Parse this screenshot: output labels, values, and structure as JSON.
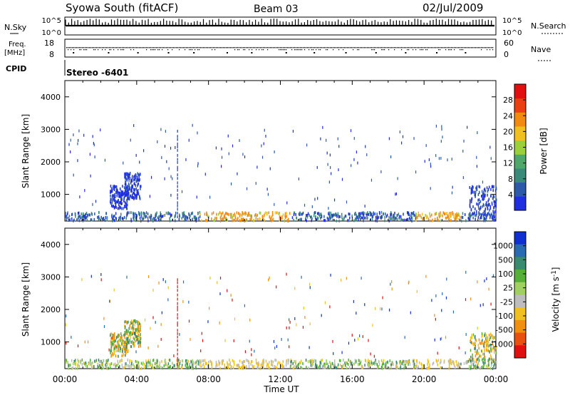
{
  "header": {
    "station": "Syowa South (fitACF)",
    "beam": "Beam 03",
    "date": "02/Jul/2009"
  },
  "top_panels": {
    "nsky_label": "N.Sky",
    "nsky_ticks": [
      "10^5",
      "10^0"
    ],
    "nsearch_label": "N.Search",
    "nsearch_ticks": [
      "10^5",
      "10^0"
    ],
    "freq_label_1": "Freq.",
    "freq_label_2": "[MHz]",
    "freq_ticks": [
      "18",
      "8"
    ],
    "nave_label": "Nave",
    "nave_ticks": [
      "60",
      "0"
    ],
    "cpid_label": "CPID",
    "cpid_value": "Stereo -6401"
  },
  "colors": {
    "power_scale": [
      "#1f2fe0",
      "#2d5aa8",
      "#3a8a7a",
      "#4fa86a",
      "#9bd03c",
      "#f0c020",
      "#f08a10",
      "#e84010",
      "#e01010"
    ],
    "velocity_scale": [
      "#1030d0",
      "#2a6ab0",
      "#3a8a70",
      "#56b038",
      "#a0d060",
      "#bdbdbd",
      "#f0c020",
      "#f09010",
      "#e85010",
      "#e01010"
    ]
  },
  "chart_data": [
    {
      "type": "heatmap",
      "title": "Power",
      "ylabel": "Slant Range [km]",
      "xlabel": "Time UT",
      "x_ticks": [
        "00:00",
        "04:00",
        "08:00",
        "12:00",
        "16:00",
        "20:00",
        "00:00"
      ],
      "y_ticks": [
        "1000",
        "2000",
        "3000",
        "4000"
      ],
      "ylim": [
        180,
        4500
      ],
      "xlim_hours": [
        0,
        24
      ],
      "colorbar_label": "Power [dB]",
      "colorbar_ticks": [
        "4",
        "8",
        "12",
        "16",
        "20",
        "24",
        "28"
      ],
      "colorbar_range": [
        0,
        32
      ]
    },
    {
      "type": "heatmap",
      "title": "Velocity",
      "ylabel": "Slant Range [km]",
      "xlabel": "Time UT",
      "x_ticks": [
        "00:00",
        "04:00",
        "08:00",
        "12:00",
        "16:00",
        "20:00",
        "00:00"
      ],
      "y_ticks": [
        "1000",
        "2000",
        "3000",
        "4000"
      ],
      "ylim": [
        180,
        4500
      ],
      "xlim_hours": [
        0,
        24
      ],
      "colorbar_label": "Velocity [m s^-1]",
      "colorbar_ticks": [
        "1000",
        "500",
        "100",
        "25",
        "-25",
        "-100",
        "-500",
        "-1000"
      ]
    }
  ],
  "footer": {
    "time_label": "Time UT"
  }
}
